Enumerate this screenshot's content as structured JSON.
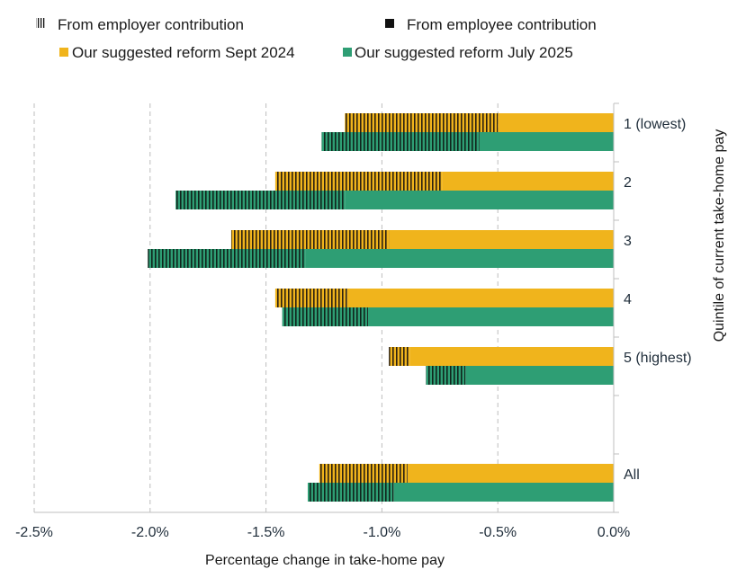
{
  "chart_data": {
    "type": "bar",
    "orientation": "horizontal",
    "stacked": true,
    "title": "",
    "xlabel": "Percentage change in take-home pay",
    "ylabel": "Quintile of current take-home pay",
    "xlim": [
      -0.025,
      0
    ],
    "xticks": [
      -0.025,
      -0.02,
      -0.015,
      -0.01,
      -0.005,
      0
    ],
    "xtick_labels": [
      "-2.5%",
      "-2.0%",
      "-1.5%",
      "-1.0%",
      "-0.5%",
      "0.0%"
    ],
    "grid": "vertical dashed",
    "categories": [
      "1 (lowest)",
      "2",
      "3",
      "4",
      "5 (highest)",
      "All"
    ],
    "legend": {
      "placement": "top",
      "patterns": [
        {
          "key": "employer",
          "label": "From employer contribution",
          "style": "striped"
        },
        {
          "key": "employee",
          "label": "From employee contribution",
          "style": "solid"
        }
      ],
      "series": [
        {
          "key": "sept2024",
          "label": "Our suggested reform Sept 2024",
          "color": "#f0b41c"
        },
        {
          "key": "july2025",
          "label": "Our suggested reform July 2025",
          "color": "#2e9e74"
        }
      ]
    },
    "series": [
      {
        "name": "Our suggested reform Sept 2024",
        "color": "#f0b41c",
        "employee": [
          -0.005,
          -0.0074,
          -0.0097,
          -0.0115,
          -0.0088,
          -0.0089
        ],
        "employer": [
          -0.0066,
          -0.0072,
          -0.0068,
          -0.0031,
          -0.0009,
          -0.0038
        ]
      },
      {
        "name": "Our suggested reform July 2025",
        "color": "#2e9e74",
        "employee": [
          -0.0058,
          -0.0116,
          -0.0133,
          -0.0106,
          -0.0064,
          -0.0095
        ],
        "employer": [
          -0.0068,
          -0.0073,
          -0.0068,
          -0.0037,
          -0.0017,
          -0.0037
        ]
      }
    ]
  }
}
